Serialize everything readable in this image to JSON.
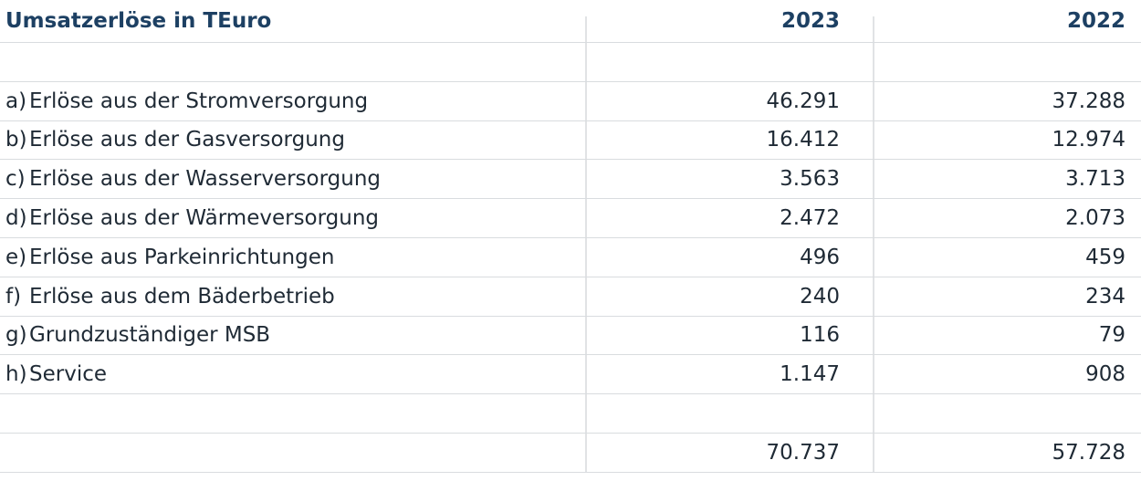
{
  "header": {
    "title": "Umsatzerlöse in TEuro",
    "col1": "2023",
    "col2": "2022"
  },
  "rows": [
    {
      "letter": "a)",
      "label": "Erlöse aus der Stromversorgung",
      "v2023": "46.291",
      "v2022": "37.288"
    },
    {
      "letter": "b)",
      "label": "Erlöse aus der Gasversorgung",
      "v2023": "16.412",
      "v2022": "12.974"
    },
    {
      "letter": "c)",
      "label": "Erlöse aus der Wasserversorgung",
      "v2023": "3.563",
      "v2022": "3.713"
    },
    {
      "letter": "d)",
      "label": "Erlöse aus der Wärmeversorgung",
      "v2023": "2.472",
      "v2022": "2.073"
    },
    {
      "letter": "e)",
      "label": "Erlöse aus Parkeinrichtungen",
      "v2023": "496",
      "v2022": "459"
    },
    {
      "letter": "f)",
      "label": "Erlöse aus dem Bäderbetrieb",
      "v2023": "240",
      "v2022": "234"
    },
    {
      "letter": "g)",
      "label": "Grundzuständiger MSB",
      "v2023": "116",
      "v2022": "79"
    },
    {
      "letter": "h)",
      "label": "Service",
      "v2023": "1.147",
      "v2022": "908"
    }
  ],
  "total": {
    "v2023": "70.737",
    "v2022": "57.728"
  }
}
